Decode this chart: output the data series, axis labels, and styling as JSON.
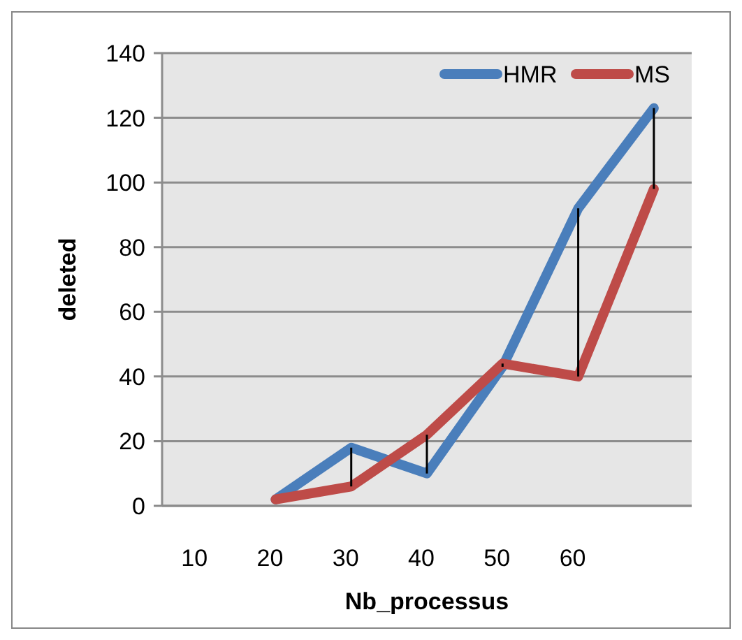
{
  "chart_data": {
    "type": "line",
    "xlabel": "Nb_processus",
    "ylabel": "deleted",
    "categories": [
      "10",
      "20",
      "30",
      "40",
      "50",
      "60",
      null
    ],
    "series": [
      {
        "name": "HMR",
        "color": "#4a7ebb",
        "values": [
          null,
          2,
          18,
          10,
          43,
          92,
          123
        ]
      },
      {
        "name": "MS",
        "color": "#be4b48",
        "values": [
          null,
          2,
          6,
          22,
          44,
          40,
          98
        ],
        "errors": [
          null,
          null,
          [
            6,
            18
          ],
          [
            10,
            22
          ],
          [
            43,
            44
          ],
          [
            40,
            92
          ],
          [
            98,
            123
          ]
        ]
      }
    ],
    "ylim": [
      0,
      140
    ],
    "yticks": [
      0,
      20,
      40,
      60,
      80,
      100,
      120,
      140
    ],
    "grid": "y",
    "legend": "top right",
    "marker": "none",
    "line_style": "solid"
  }
}
